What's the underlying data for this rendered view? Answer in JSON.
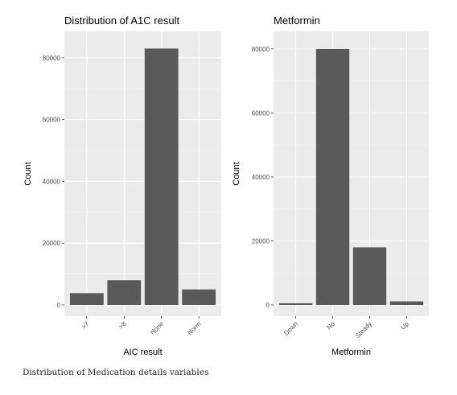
{
  "caption": "Distribution of Medication details variables",
  "colors": {
    "panel": "#ebebeb",
    "grid_major": "#ffffff",
    "grid_minor": "#f6f6f6",
    "bar": "#595959",
    "axis_text": "#4d4d4d",
    "title": "#000000"
  },
  "chart_data": [
    {
      "type": "bar",
      "title": "Distribution of A1C result",
      "xlabel": "AIC result",
      "ylabel": "Count",
      "categories": [
        ">7",
        ">8",
        "None",
        "Norm"
      ],
      "values": [
        3800,
        8000,
        83000,
        5000
      ],
      "ylim": [
        0,
        87000
      ],
      "yticks": [
        0,
        20000,
        40000,
        60000,
        80000
      ],
      "ytick_labels": [
        "0",
        "20000",
        "40000",
        "60000",
        "80000"
      ],
      "grid": true
    },
    {
      "type": "bar",
      "title": "Metformin",
      "xlabel": "Metformin",
      "ylabel": "Count",
      "categories": [
        "Down",
        "No",
        "Steady",
        "Up"
      ],
      "values": [
        500,
        80000,
        18000,
        1100
      ],
      "ylim": [
        0,
        84000
      ],
      "yticks": [
        0,
        20000,
        40000,
        60000,
        80000
      ],
      "ytick_labels": [
        "0",
        "20000",
        "40000",
        "60000",
        "80000"
      ],
      "grid": true
    }
  ]
}
